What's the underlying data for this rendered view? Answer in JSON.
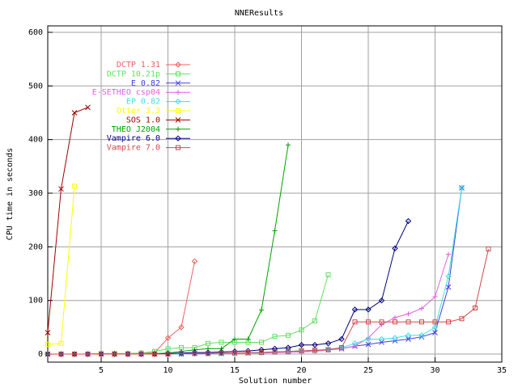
{
  "chart_data": {
    "type": "line",
    "title": "NNEResults",
    "x_label": "Solution number",
    "y_label": "CPU time in seconds",
    "xlim": [
      1,
      35
    ],
    "ylim": [
      -15,
      612
    ],
    "xticks": [
      5,
      10,
      15,
      20,
      25,
      30,
      35
    ],
    "yticks": [
      0,
      100,
      200,
      300,
      400,
      500,
      600
    ],
    "grid": true,
    "legend": "upper-left",
    "x": [
      1,
      2,
      3,
      4,
      5,
      6,
      7,
      8,
      9,
      10,
      11,
      12,
      13,
      14,
      15,
      16,
      17,
      18,
      19,
      20,
      21,
      22,
      23,
      24,
      25,
      26,
      27,
      28,
      29,
      30,
      31,
      32,
      33,
      34
    ],
    "series": [
      {
        "name": "DCTP 1.31",
        "color": "#f06060",
        "values": [
          0,
          0,
          0,
          0,
          1,
          1,
          1,
          2,
          2,
          30,
          50,
          173,
          null,
          null,
          null,
          null,
          null,
          null,
          null,
          null,
          null,
          null,
          null,
          null,
          null,
          null,
          null,
          null,
          null,
          null,
          null,
          null,
          null,
          null
        ]
      },
      {
        "name": "DCTP 10.21p",
        "color": "#60e060",
        "values": [
          0,
          0,
          0,
          0,
          1,
          1,
          1,
          2,
          5,
          10,
          12,
          12,
          20,
          22,
          22,
          22,
          22,
          33,
          35,
          45,
          62,
          148,
          null,
          null,
          null,
          null,
          null,
          null,
          null,
          null,
          null,
          null,
          null,
          null
        ]
      },
      {
        "name": "E 0.82",
        "color": "#4040e0",
        "values": [
          0,
          0,
          0,
          0,
          0,
          0,
          0,
          0,
          0,
          0,
          0,
          1,
          1,
          1,
          2,
          2,
          3,
          4,
          5,
          6,
          7,
          8,
          10,
          15,
          18,
          22,
          25,
          28,
          32,
          40,
          125,
          310,
          null,
          null
        ]
      },
      {
        "name": "E-SETHEO csp04",
        "color": "#e060e0",
        "values": [
          0,
          0,
          0,
          0,
          0,
          0,
          0,
          0,
          0,
          0,
          0,
          0,
          1,
          1,
          1,
          2,
          2,
          3,
          3,
          4,
          5,
          8,
          10,
          15,
          30,
          55,
          68,
          75,
          85,
          107,
          186,
          null,
          null,
          null
        ]
      },
      {
        "name": "EP 0.82",
        "color": "#40e0e0",
        "values": [
          0,
          0,
          0,
          0,
          0,
          0,
          0,
          0,
          0,
          0,
          0,
          1,
          1,
          1,
          2,
          2,
          3,
          4,
          5,
          6,
          7,
          9,
          12,
          20,
          28,
          28,
          30,
          35,
          35,
          50,
          145,
          310,
          null,
          null
        ]
      },
      {
        "name": "Otter 3.3",
        "color": "#ffff00",
        "values": [
          18,
          20,
          313,
          null,
          null,
          null,
          null,
          null,
          null,
          null,
          null,
          null,
          null,
          null,
          null,
          null,
          null,
          null,
          null,
          null,
          null,
          null,
          null,
          null,
          null,
          null,
          null,
          null,
          null,
          null,
          null,
          null,
          null,
          null
        ]
      },
      {
        "name": "SOS 1.0",
        "color": "#a00000",
        "values": [
          40,
          308,
          450,
          460,
          null,
          null,
          null,
          null,
          null,
          null,
          null,
          null,
          null,
          null,
          null,
          null,
          null,
          null,
          null,
          null,
          null,
          null,
          null,
          null,
          null,
          null,
          null,
          null,
          null,
          null,
          null,
          null,
          null,
          null
        ]
      },
      {
        "name": "THEO J2004",
        "color": "#00a000",
        "values": [
          0,
          0,
          0,
          0,
          0,
          0,
          0,
          0,
          1,
          2,
          5,
          8,
          10,
          10,
          28,
          28,
          82,
          230,
          390,
          null,
          null,
          null,
          null,
          null,
          null,
          null,
          null,
          null,
          null,
          null,
          null,
          null,
          null,
          null
        ]
      },
      {
        "name": "Vampire 6.0",
        "color": "#000080",
        "values": [
          0,
          0,
          0,
          0,
          0,
          0,
          0,
          0,
          0,
          1,
          2,
          3,
          3,
          4,
          5,
          6,
          8,
          10,
          12,
          17,
          17,
          20,
          28,
          83,
          83,
          100,
          197,
          248,
          null,
          null,
          null,
          null,
          null,
          null
        ]
      },
      {
        "name": "Vampire 7.0",
        "color": "#d04848",
        "values": [
          0,
          0,
          0,
          0,
          0,
          0,
          0,
          0,
          0,
          0,
          1,
          1,
          1,
          2,
          2,
          3,
          3,
          4,
          5,
          6,
          7,
          8,
          12,
          60,
          60,
          60,
          60,
          60,
          60,
          60,
          60,
          66,
          86,
          196
        ]
      }
    ]
  }
}
